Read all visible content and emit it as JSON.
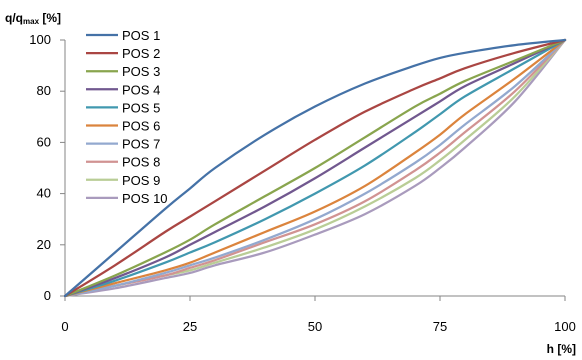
{
  "chart_data": {
    "type": "line",
    "title": "",
    "xlabel": "h [%]",
    "ylabel": {
      "main": "q/q",
      "sub": "max",
      "unit": " [%]"
    },
    "xlim": [
      0,
      100
    ],
    "ylim": [
      0,
      100
    ],
    "xticks": [
      0,
      25,
      50,
      75,
      100
    ],
    "yticks": [
      0,
      20,
      40,
      60,
      80,
      100
    ],
    "grid": false,
    "legend_position": "top-left",
    "x": [
      0,
      10,
      20,
      25,
      30,
      40,
      50,
      60,
      70,
      75,
      80,
      90,
      100
    ],
    "series": [
      {
        "name": "POS 1",
        "color": "#4572A7",
        "values": [
          0,
          17,
          34,
          42,
          50,
          63,
          74,
          83,
          90,
          93,
          95,
          98,
          100
        ]
      },
      {
        "name": "POS 2",
        "color": "#AA4643",
        "values": [
          0,
          12,
          25,
          31,
          37,
          49,
          61,
          72,
          81,
          85,
          89,
          95,
          100
        ]
      },
      {
        "name": "POS 3",
        "color": "#89A54E",
        "values": [
          0,
          8,
          17,
          22,
          28,
          39,
          50,
          62,
          74,
          79,
          84,
          92,
          100
        ]
      },
      {
        "name": "POS 4",
        "color": "#71588F",
        "values": [
          0,
          7,
          15,
          20,
          25,
          35,
          46,
          58,
          70,
          76,
          82,
          91,
          100
        ]
      },
      {
        "name": "POS 5",
        "color": "#4198AF",
        "values": [
          0,
          6,
          13,
          17,
          21,
          30,
          40,
          51,
          64,
          71,
          78,
          89,
          100
        ]
      },
      {
        "name": "POS 6",
        "color": "#DB843D",
        "values": [
          0,
          5,
          10,
          13,
          17,
          25,
          33,
          43,
          56,
          63,
          71,
          85,
          100
        ]
      },
      {
        "name": "POS 7",
        "color": "#93A9CF",
        "values": [
          0,
          4,
          9,
          12,
          15,
          22,
          30,
          40,
          52,
          59,
          67,
          82,
          100
        ]
      },
      {
        "name": "POS 8",
        "color": "#D19392",
        "values": [
          0,
          4,
          8,
          11,
          14,
          21,
          28,
          37,
          49,
          56,
          64,
          80,
          100
        ]
      },
      {
        "name": "POS 9",
        "color": "#B9CD96",
        "values": [
          0,
          4,
          8,
          10,
          13,
          19,
          26,
          35,
          46,
          53,
          61,
          78,
          100
        ]
      },
      {
        "name": "POS 10",
        "color": "#A99BBD",
        "values": [
          0,
          3,
          7,
          9,
          12,
          17,
          24,
          32,
          43,
          50,
          58,
          76,
          100
        ]
      }
    ]
  }
}
